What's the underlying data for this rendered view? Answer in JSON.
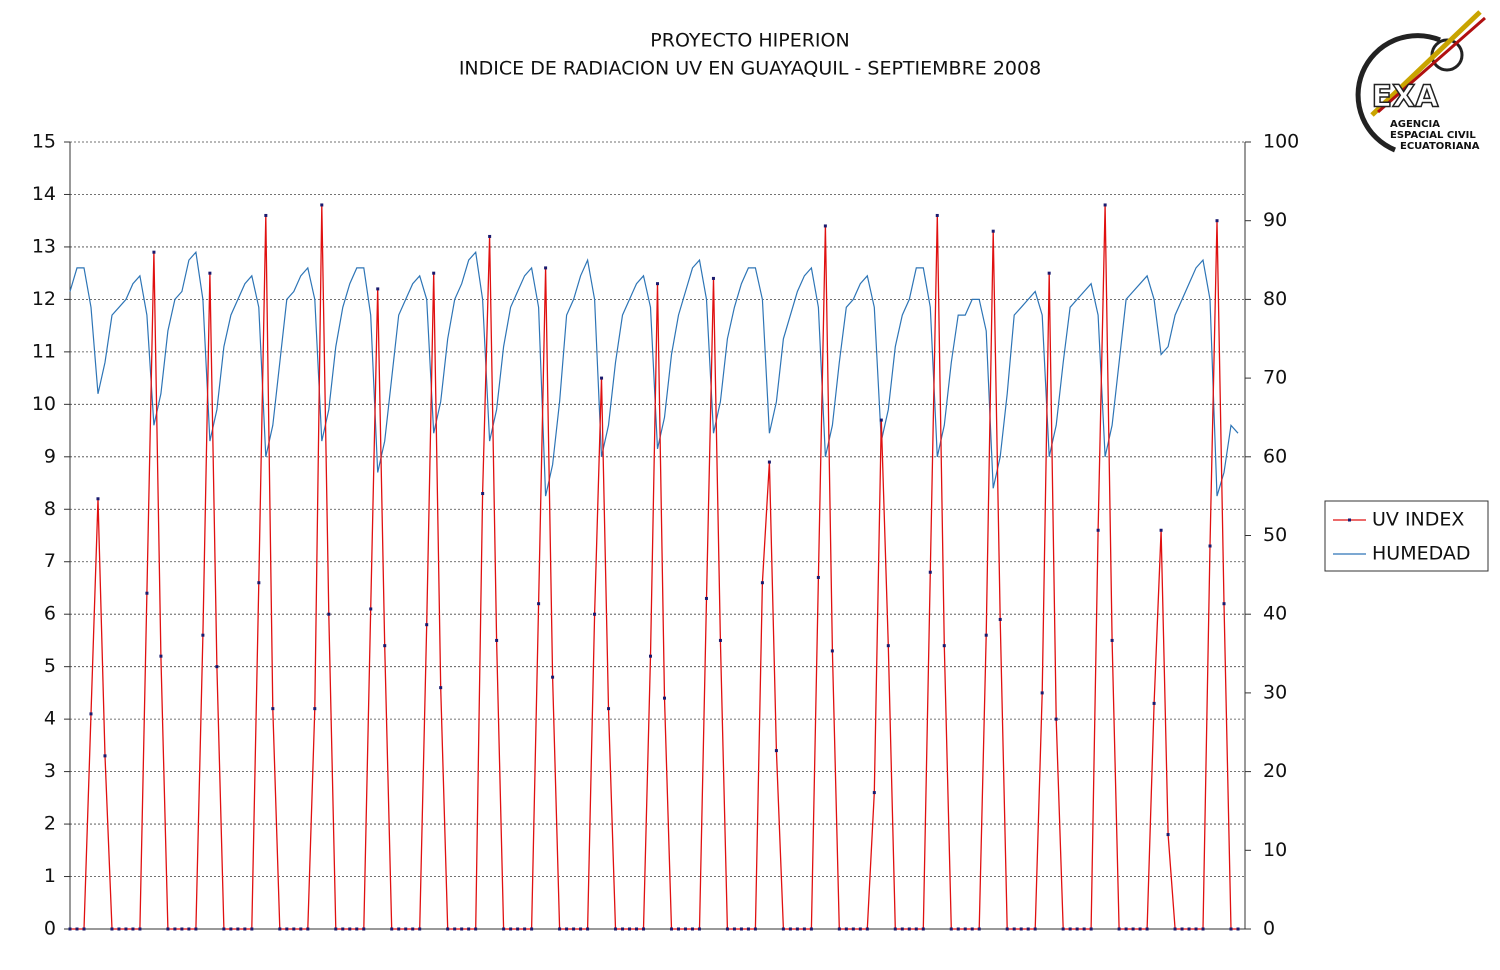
{
  "chart_data": {
    "type": "line",
    "title": "PROYECTO HIPERION",
    "subtitle": "INDICE DE RADIACION UV EN GUAYAQUIL - SEPTIEMBRE 2008",
    "annotations": [
      "EXA",
      "AGENCIA",
      "ESPACIAL CIVIL",
      "ECUATORIANA"
    ],
    "ylim": [
      0,
      15
    ],
    "yticks": [
      0,
      1,
      2,
      3,
      4,
      5,
      6,
      7,
      8,
      9,
      10,
      11,
      12,
      13,
      14,
      15
    ],
    "y2lim": [
      0,
      100
    ],
    "y2ticks": [
      0,
      10,
      20,
      30,
      40,
      50,
      60,
      70,
      80,
      90,
      100
    ],
    "grid": true,
    "legend": "right",
    "series": [
      {
        "name": "UV INDEX",
        "color": "#e01010",
        "marker_color": "#1a1a6e",
        "values": [
          0,
          0,
          0,
          4.1,
          8.2,
          3.3,
          0,
          0,
          0,
          0,
          0,
          6.4,
          12.9,
          5.2,
          0,
          0,
          0,
          0,
          0,
          5.6,
          12.5,
          5,
          0,
          0,
          0,
          0,
          0,
          6.6,
          13.6,
          4.2,
          0,
          0,
          0,
          0,
          0,
          4.2,
          13.8,
          6,
          0,
          0,
          0,
          0,
          0,
          6.1,
          12.2,
          5.4,
          0,
          0,
          0,
          0,
          0,
          5.8,
          12.5,
          4.6,
          0,
          0,
          0,
          0,
          0,
          8.3,
          13.2,
          5.5,
          0,
          0,
          0,
          0,
          0,
          6.2,
          12.6,
          4.8,
          0,
          0,
          0,
          0,
          0,
          6,
          10.5,
          4.2,
          0,
          0,
          0,
          0,
          0,
          5.2,
          12.3,
          4.4,
          0,
          0,
          0,
          0,
          0,
          6.3,
          12.4,
          5.5,
          0,
          0,
          0,
          0,
          0,
          6.6,
          8.9,
          3.4,
          0,
          0,
          0,
          0,
          0,
          6.7,
          13.4,
          5.3,
          0,
          0,
          0,
          0,
          0,
          2.6,
          9.7,
          5.4,
          0,
          0,
          0,
          0,
          0,
          6.8,
          13.6,
          5.4,
          0,
          0,
          0,
          0,
          0,
          5.6,
          13.3,
          5.9,
          0,
          0,
          0,
          0,
          0,
          4.5,
          12.5,
          4,
          0,
          0,
          0,
          0,
          0,
          7.6,
          13.8,
          5.5,
          0,
          0,
          0,
          0,
          0,
          4.3,
          7.6,
          1.8,
          0,
          0,
          0,
          0,
          0,
          7.3,
          13.5,
          6.2,
          0,
          0
        ]
      },
      {
        "name": "HUMEDAD",
        "color": "#2e75b6",
        "axis": "y2",
        "values": [
          81,
          84,
          84,
          79,
          68,
          72,
          78,
          79,
          80,
          82,
          83,
          78,
          64,
          68,
          76,
          80,
          81,
          85,
          86,
          80,
          62,
          66,
          74,
          78,
          80,
          82,
          83,
          79,
          60,
          64,
          72,
          80,
          81,
          83,
          84,
          80,
          62,
          66,
          74,
          79,
          82,
          84,
          84,
          78,
          58,
          62,
          70,
          78,
          80,
          82,
          83,
          80,
          63,
          67,
          75,
          80,
          82,
          85,
          86,
          80,
          62,
          66,
          74,
          79,
          81,
          83,
          84,
          79,
          55,
          59,
          67,
          78,
          80,
          83,
          85,
          80,
          60,
          64,
          72,
          78,
          80,
          82,
          83,
          79,
          61,
          65,
          73,
          78,
          81,
          84,
          85,
          80,
          63,
          67,
          75,
          79,
          82,
          84,
          84,
          80,
          63,
          67,
          75,
          78,
          81,
          83,
          84,
          79,
          60,
          64,
          72,
          79,
          80,
          82,
          83,
          79,
          62,
          66,
          74,
          78,
          80,
          84,
          84,
          79,
          60,
          64,
          72,
          78,
          78,
          80,
          80,
          76,
          56,
          60,
          68,
          78,
          79,
          80,
          81,
          78,
          60,
          64,
          72,
          79,
          80,
          81,
          82,
          78,
          60,
          64,
          72,
          80,
          81,
          82,
          83,
          80,
          73,
          74,
          78,
          80,
          82,
          84,
          85,
          80,
          55,
          58,
          64,
          63
        ]
      }
    ]
  }
}
